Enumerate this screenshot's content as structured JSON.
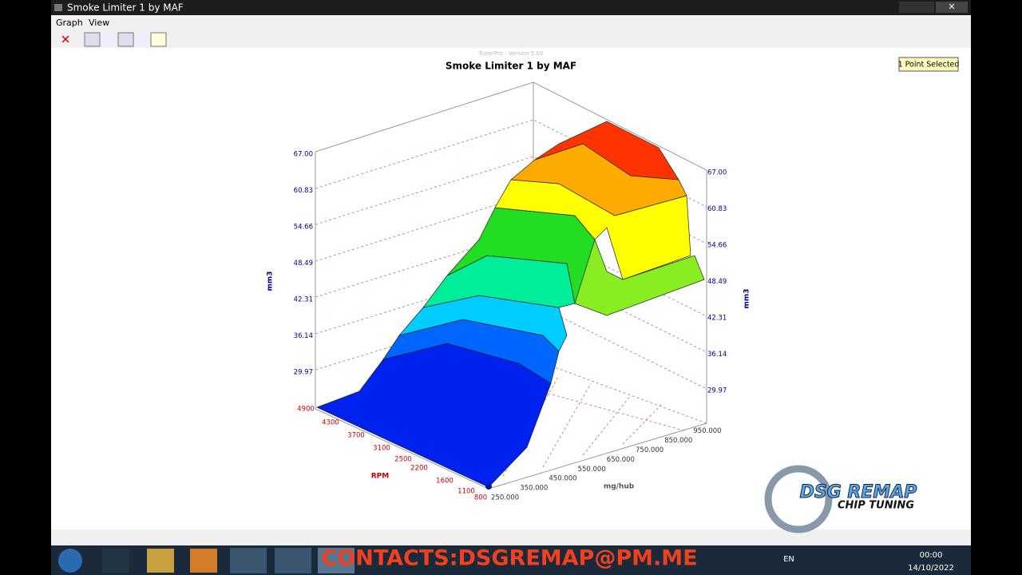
{
  "window": {
    "title": "Smoke Limiter 1 by MAF",
    "menu": [
      "Graph",
      "View"
    ]
  },
  "graph": {
    "version": "TunerPro - Version 5.00",
    "title": "Smoke Limiter 1 by MAF",
    "status": "1 Point Selected",
    "z_label": "mm3",
    "z_ticks_left": [
      "67.00",
      "60.83",
      "54.66",
      "48.49",
      "42.31",
      "36.14",
      "29.97"
    ],
    "z_ticks_right": [
      "67.00",
      "60.83",
      "54.66",
      "48.49",
      "42.31",
      "36.14",
      "29.97"
    ],
    "rpm_label": "RPM",
    "rpm_ticks": [
      "4900",
      "4300",
      "3700",
      "3100",
      "2500",
      "2200",
      "1600",
      "1100",
      "800"
    ],
    "maf_label": "mg/hub",
    "maf_ticks": [
      "250.000",
      "350.000",
      "450.000",
      "550.000",
      "650.000",
      "750.000",
      "850.000",
      "950.000"
    ]
  },
  "watermark": {
    "brand": "DSG REMAP",
    "tagline": "CHIP TUNING"
  },
  "banner": "CONTACTS:DSGREMAP@PM.ME",
  "taskbar": {
    "language": "EN",
    "time": "00:00",
    "date": "14/10/2022"
  }
}
